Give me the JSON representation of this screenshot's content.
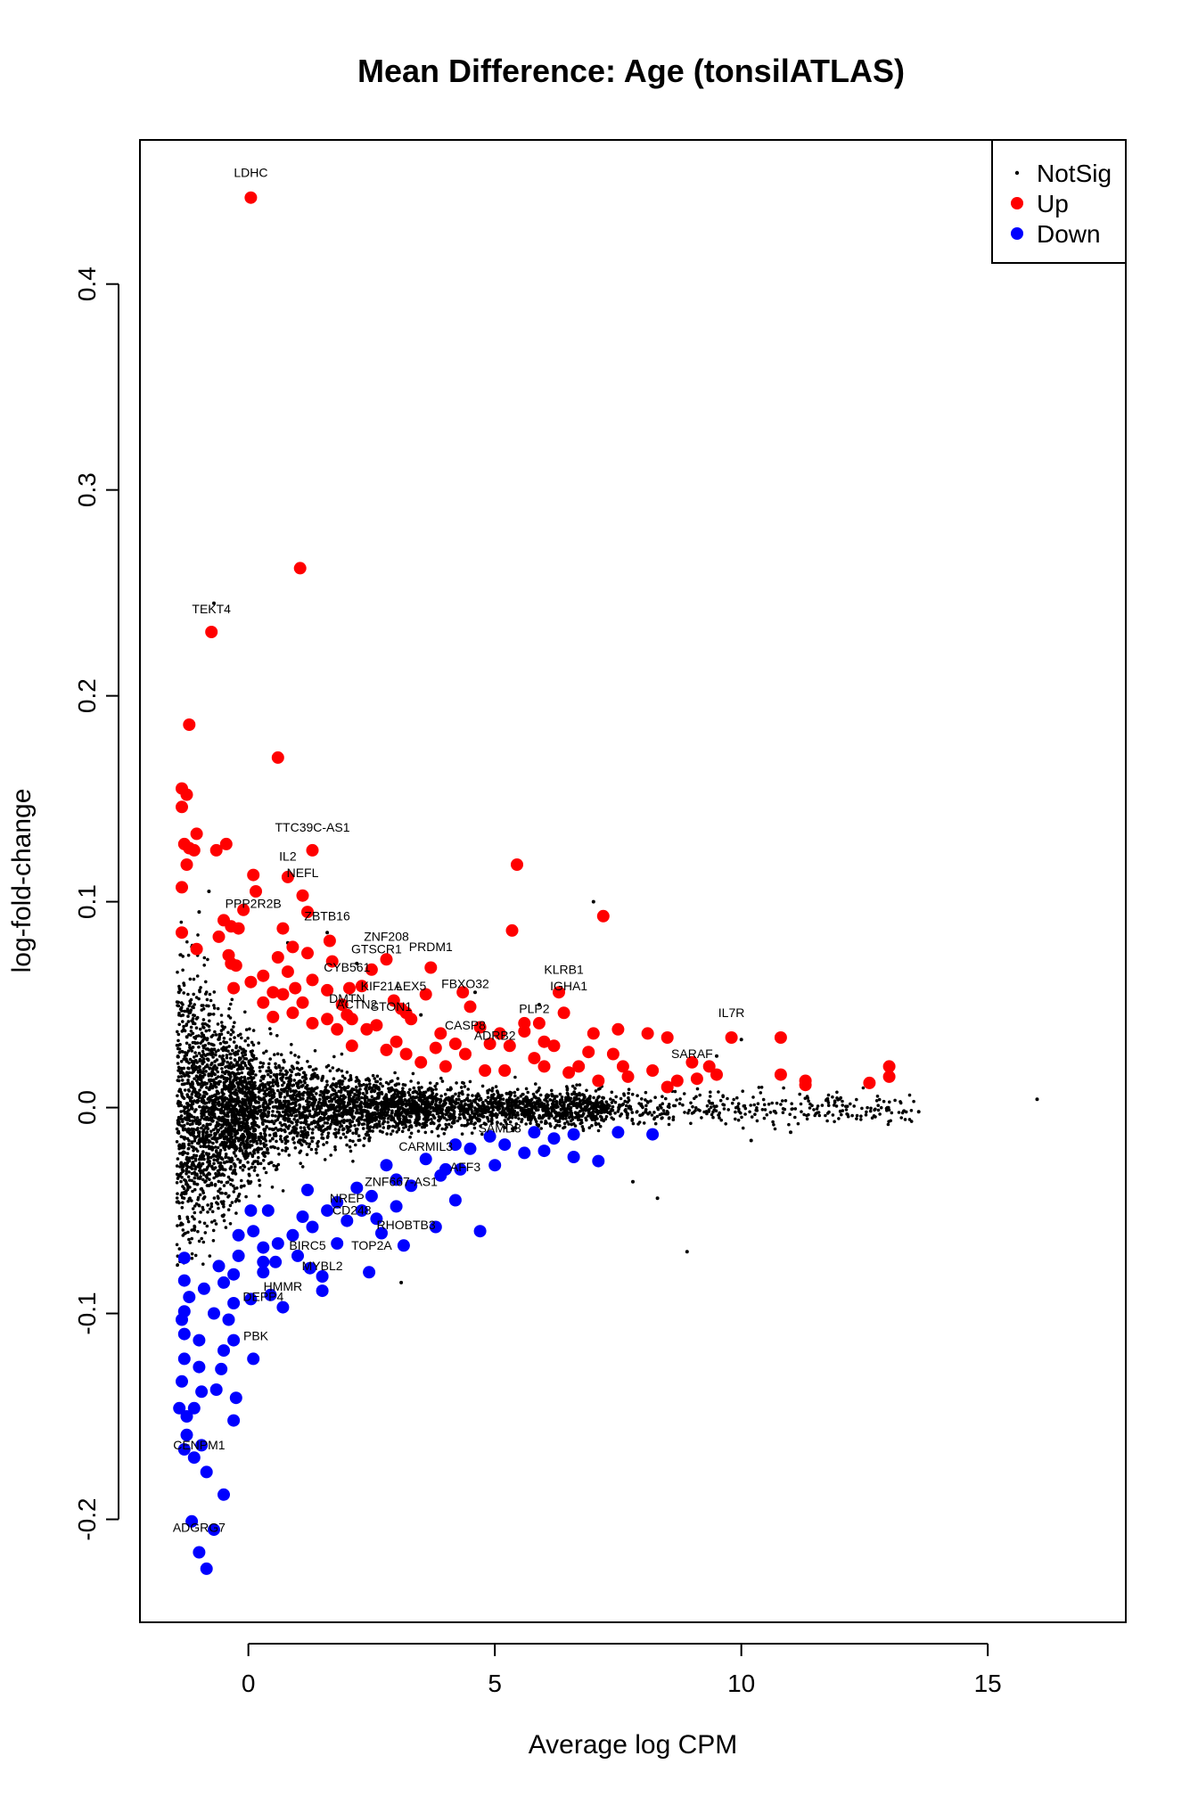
{
  "chart_data": {
    "type": "scatter",
    "title": "Mean Difference: Age (tonsilATLAS)",
    "xlabel": "Average log CPM",
    "ylabel": "log-fold-change",
    "xlim": [
      -2.2,
      17.8
    ],
    "ylim": [
      -0.25,
      0.47
    ],
    "x_ticks": [
      0,
      5,
      10,
      15
    ],
    "y_ticks": [
      -0.2,
      -0.1,
      0.0,
      0.1,
      0.2,
      0.3,
      0.4
    ],
    "x_tick_labels": [
      "0",
      "5",
      "10",
      "15"
    ],
    "y_tick_labels": [
      "-0.2",
      "-0.1",
      "0.0",
      "0.1",
      "0.2",
      "0.3",
      "0.4"
    ],
    "grid": false,
    "legend": {
      "position": "top-right",
      "entries": [
        {
          "label": "NotSig",
          "color": "#000000",
          "marker": "small-dot"
        },
        {
          "label": "Up",
          "color": "#ff0000",
          "marker": "circle"
        },
        {
          "label": "Down",
          "color": "#0000ff",
          "marker": "circle"
        }
      ]
    },
    "colors": {
      "NotSig": "#000000",
      "Up": "#ff0000",
      "Down": "#0000ff"
    },
    "series": [
      {
        "name": "NotSig",
        "points": [
          [
            -0.7,
            0.245
          ],
          [
            7.0,
            0.1
          ],
          [
            4.6,
            0.056
          ],
          [
            5.9,
            0.05
          ],
          [
            3.5,
            0.045
          ],
          [
            10.0,
            0.033
          ],
          [
            9.5,
            0.025
          ],
          [
            16.0,
            0.004
          ],
          [
            13.6,
            -0.002
          ],
          [
            10.2,
            -0.016
          ],
          [
            11.0,
            -0.012
          ],
          [
            7.8,
            -0.036
          ],
          [
            8.3,
            -0.044
          ],
          [
            8.9,
            -0.07
          ],
          [
            3.1,
            -0.085
          ],
          [
            0.8,
            0.08
          ],
          [
            1.6,
            0.085
          ],
          [
            2.2,
            0.07
          ],
          [
            -1.0,
            0.095
          ],
          [
            -0.8,
            0.105
          ]
        ]
      },
      {
        "name": "Up",
        "points": [
          [
            0.05,
            0.442
          ],
          [
            1.05,
            0.262
          ],
          [
            -0.75,
            0.231
          ],
          [
            -1.2,
            0.186
          ],
          [
            0.6,
            0.17
          ],
          [
            -1.35,
            0.155
          ],
          [
            -1.25,
            0.152
          ],
          [
            -1.35,
            0.146
          ],
          [
            -1.05,
            0.133
          ],
          [
            -0.45,
            0.128
          ],
          [
            -1.3,
            0.128
          ],
          [
            -1.2,
            0.126
          ],
          [
            -1.1,
            0.125
          ],
          [
            -0.65,
            0.125
          ],
          [
            1.3,
            0.125
          ],
          [
            -1.25,
            0.118
          ],
          [
            5.45,
            0.118
          ],
          [
            0.1,
            0.113
          ],
          [
            0.8,
            0.112
          ],
          [
            -1.35,
            0.107
          ],
          [
            0.15,
            0.105
          ],
          [
            1.1,
            0.103
          ],
          [
            -0.5,
            0.091
          ],
          [
            -0.35,
            0.088
          ],
          [
            1.2,
            0.095
          ],
          [
            -0.1,
            0.096
          ],
          [
            7.2,
            0.093
          ],
          [
            -0.2,
            0.087
          ],
          [
            0.7,
            0.087
          ],
          [
            5.35,
            0.086
          ],
          [
            -0.6,
            0.083
          ],
          [
            -1.35,
            0.085
          ],
          [
            1.65,
            0.081
          ],
          [
            0.9,
            0.078
          ],
          [
            -1.05,
            0.077
          ],
          [
            -0.4,
            0.074
          ],
          [
            1.2,
            0.075
          ],
          [
            0.6,
            0.073
          ],
          [
            -0.35,
            0.07
          ],
          [
            2.8,
            0.072
          ],
          [
            1.7,
            0.071
          ],
          [
            -0.25,
            0.069
          ],
          [
            3.7,
            0.068
          ],
          [
            2.5,
            0.067
          ],
          [
            0.3,
            0.064
          ],
          [
            0.8,
            0.066
          ],
          [
            1.3,
            0.062
          ],
          [
            0.05,
            0.061
          ],
          [
            2.3,
            0.059
          ],
          [
            2.05,
            0.058
          ],
          [
            -0.3,
            0.058
          ],
          [
            0.95,
            0.058
          ],
          [
            0.5,
            0.056
          ],
          [
            1.6,
            0.057
          ],
          [
            3.6,
            0.055
          ],
          [
            4.35,
            0.056
          ],
          [
            6.3,
            0.056
          ],
          [
            0.7,
            0.055
          ],
          [
            1.9,
            0.05
          ],
          [
            2.95,
            0.052
          ],
          [
            0.3,
            0.051
          ],
          [
            1.1,
            0.051
          ],
          [
            3.1,
            0.048
          ],
          [
            4.5,
            0.049
          ],
          [
            6.4,
            0.046
          ],
          [
            1.6,
            0.043
          ],
          [
            2.1,
            0.043
          ],
          [
            3.3,
            0.043
          ],
          [
            5.6,
            0.041
          ],
          [
            5.9,
            0.041
          ],
          [
            1.3,
            0.041
          ],
          [
            2.6,
            0.04
          ],
          [
            3.2,
            0.046
          ],
          [
            2.0,
            0.045
          ],
          [
            0.9,
            0.046
          ],
          [
            0.5,
            0.044
          ],
          [
            1.8,
            0.038
          ],
          [
            2.4,
            0.038
          ],
          [
            3.9,
            0.036
          ],
          [
            4.7,
            0.039
          ],
          [
            5.1,
            0.036
          ],
          [
            5.6,
            0.037
          ],
          [
            7.0,
            0.036
          ],
          [
            7.5,
            0.038
          ],
          [
            8.1,
            0.036
          ],
          [
            8.5,
            0.034
          ],
          [
            9.8,
            0.034
          ],
          [
            10.8,
            0.034
          ],
          [
            4.2,
            0.031
          ],
          [
            4.9,
            0.031
          ],
          [
            5.3,
            0.03
          ],
          [
            6.2,
            0.03
          ],
          [
            2.1,
            0.03
          ],
          [
            3.0,
            0.032
          ],
          [
            3.8,
            0.029
          ],
          [
            6.9,
            0.027
          ],
          [
            7.4,
            0.026
          ],
          [
            9.0,
            0.022
          ],
          [
            9.35,
            0.02
          ],
          [
            4.4,
            0.026
          ],
          [
            5.8,
            0.024
          ],
          [
            6.7,
            0.02
          ],
          [
            7.6,
            0.02
          ],
          [
            8.2,
            0.018
          ],
          [
            8.7,
            0.013
          ],
          [
            9.1,
            0.014
          ],
          [
            9.5,
            0.016
          ],
          [
            10.8,
            0.016
          ],
          [
            11.3,
            0.013
          ],
          [
            11.3,
            0.011
          ],
          [
            12.6,
            0.012
          ],
          [
            13.0,
            0.015
          ],
          [
            13.0,
            0.02
          ],
          [
            7.7,
            0.015
          ],
          [
            8.5,
            0.01
          ],
          [
            3.5,
            0.022
          ],
          [
            4.0,
            0.02
          ],
          [
            4.8,
            0.018
          ],
          [
            5.2,
            0.018
          ],
          [
            6.0,
            0.02
          ],
          [
            6.5,
            0.017
          ],
          [
            7.1,
            0.013
          ],
          [
            3.2,
            0.026
          ],
          [
            2.8,
            0.028
          ],
          [
            6.0,
            0.032
          ]
        ]
      },
      {
        "name": "Down",
        "points": [
          [
            -0.85,
            -0.224
          ],
          [
            -1.0,
            -0.216
          ],
          [
            -1.15,
            -0.201
          ],
          [
            -0.7,
            -0.205
          ],
          [
            -0.5,
            -0.188
          ],
          [
            -0.85,
            -0.177
          ],
          [
            -1.3,
            -0.166
          ],
          [
            -1.1,
            -0.17
          ],
          [
            -0.95,
            -0.164
          ],
          [
            -1.25,
            -0.159
          ],
          [
            -1.4,
            -0.146
          ],
          [
            -1.25,
            -0.15
          ],
          [
            -1.1,
            -0.146
          ],
          [
            -0.95,
            -0.138
          ],
          [
            -0.65,
            -0.137
          ],
          [
            -0.3,
            -0.152
          ],
          [
            -0.25,
            -0.141
          ],
          [
            -1.35,
            -0.133
          ],
          [
            -1.0,
            -0.126
          ],
          [
            -0.55,
            -0.127
          ],
          [
            -0.5,
            -0.118
          ],
          [
            0.1,
            -0.122
          ],
          [
            -1.3,
            -0.122
          ],
          [
            -1.0,
            -0.113
          ],
          [
            -0.3,
            -0.113
          ],
          [
            -1.3,
            -0.11
          ],
          [
            -1.35,
            -0.103
          ],
          [
            -0.7,
            -0.1
          ],
          [
            -0.4,
            -0.103
          ],
          [
            -0.3,
            -0.095
          ],
          [
            0.05,
            -0.093
          ],
          [
            0.7,
            -0.097
          ],
          [
            0.45,
            -0.091
          ],
          [
            -1.3,
            -0.099
          ],
          [
            -1.2,
            -0.092
          ],
          [
            -0.9,
            -0.088
          ],
          [
            -0.5,
            -0.085
          ],
          [
            -0.3,
            -0.081
          ],
          [
            0.3,
            -0.08
          ],
          [
            0.55,
            -0.075
          ],
          [
            0.3,
            -0.075
          ],
          [
            1.5,
            -0.089
          ],
          [
            1.5,
            -0.082
          ],
          [
            1.0,
            -0.072
          ],
          [
            1.25,
            -0.078
          ],
          [
            2.45,
            -0.08
          ],
          [
            -0.6,
            -0.077
          ],
          [
            -0.2,
            -0.072
          ],
          [
            -1.3,
            -0.084
          ],
          [
            -1.3,
            -0.073
          ],
          [
            0.3,
            -0.068
          ],
          [
            0.6,
            -0.066
          ],
          [
            1.8,
            -0.066
          ],
          [
            3.15,
            -0.067
          ],
          [
            4.7,
            -0.06
          ],
          [
            3.8,
            -0.058
          ],
          [
            2.7,
            -0.061
          ],
          [
            -0.2,
            -0.062
          ],
          [
            0.1,
            -0.06
          ],
          [
            0.9,
            -0.062
          ],
          [
            1.3,
            -0.058
          ],
          [
            2.0,
            -0.055
          ],
          [
            2.6,
            -0.054
          ],
          [
            1.6,
            -0.05
          ],
          [
            2.3,
            -0.05
          ],
          [
            3.0,
            -0.048
          ],
          [
            4.2,
            -0.045
          ],
          [
            0.05,
            -0.05
          ],
          [
            0.4,
            -0.05
          ],
          [
            1.1,
            -0.053
          ],
          [
            1.8,
            -0.046
          ],
          [
            2.5,
            -0.043
          ],
          [
            3.3,
            -0.038
          ],
          [
            3.9,
            -0.033
          ],
          [
            4.3,
            -0.03
          ],
          [
            5.0,
            -0.028
          ],
          [
            4.0,
            -0.03
          ],
          [
            3.0,
            -0.035
          ],
          [
            2.2,
            -0.039
          ],
          [
            1.2,
            -0.04
          ],
          [
            5.6,
            -0.022
          ],
          [
            6.0,
            -0.021
          ],
          [
            6.6,
            -0.024
          ],
          [
            7.1,
            -0.026
          ],
          [
            7.5,
            -0.012
          ],
          [
            8.2,
            -0.013
          ],
          [
            4.5,
            -0.02
          ],
          [
            5.2,
            -0.018
          ],
          [
            3.6,
            -0.025
          ],
          [
            2.8,
            -0.028
          ],
          [
            6.2,
            -0.015
          ],
          [
            6.6,
            -0.013
          ],
          [
            5.8,
            -0.012
          ],
          [
            4.9,
            -0.014
          ],
          [
            4.2,
            -0.018
          ]
        ]
      }
    ],
    "annotations": [
      {
        "text": "LDHC",
        "x": 0.05,
        "y": 0.452
      },
      {
        "text": "TEKT4",
        "x": -0.75,
        "y": 0.24
      },
      {
        "text": "TTC39C-AS1",
        "x": 1.3,
        "y": 0.134
      },
      {
        "text": "IL2",
        "x": 0.8,
        "y": 0.12
      },
      {
        "text": "NEFL",
        "x": 1.1,
        "y": 0.112
      },
      {
        "text": "PPP2R2B",
        "x": 0.1,
        "y": 0.097
      },
      {
        "text": "ZBTB16",
        "x": 1.6,
        "y": 0.091
      },
      {
        "text": "ZNF208",
        "x": 2.8,
        "y": 0.081
      },
      {
        "text": "GTSCR1",
        "x": 2.6,
        "y": 0.075
      },
      {
        "text": "PRDM1",
        "x": 3.7,
        "y": 0.076
      },
      {
        "text": "CYB561",
        "x": 2.0,
        "y": 0.066
      },
      {
        "text": "KLRB1",
        "x": 6.4,
        "y": 0.065
      },
      {
        "text": "KIF21A",
        "x": 2.7,
        "y": 0.057
      },
      {
        "text": "LEX5",
        "x": 3.3,
        "y": 0.057
      },
      {
        "text": "FBXO32",
        "x": 4.4,
        "y": 0.058
      },
      {
        "text": "IGHA1",
        "x": 6.5,
        "y": 0.057
      },
      {
        "text": "DMTN",
        "x": 2.0,
        "y": 0.051
      },
      {
        "text": "ACTN2",
        "x": 2.2,
        "y": 0.048
      },
      {
        "text": "STON1",
        "x": 2.9,
        "y": 0.047
      },
      {
        "text": "PLP2",
        "x": 5.8,
        "y": 0.046
      },
      {
        "text": "IL7R",
        "x": 9.8,
        "y": 0.044
      },
      {
        "text": "CASP8",
        "x": 4.4,
        "y": 0.038
      },
      {
        "text": "ADRB2",
        "x": 5.0,
        "y": 0.033
      },
      {
        "text": "SARAF",
        "x": 9.0,
        "y": 0.024
      },
      {
        "text": "SAMD3",
        "x": 5.1,
        "y": -0.012
      },
      {
        "text": "CARMIL3",
        "x": 3.6,
        "y": -0.021
      },
      {
        "text": "AFF3",
        "x": 4.4,
        "y": -0.031
      },
      {
        "text": "ZNF667-AS1",
        "x": 3.1,
        "y": -0.038
      },
      {
        "text": "NREP",
        "x": 2.0,
        "y": -0.046
      },
      {
        "text": "CD248",
        "x": 2.1,
        "y": -0.052
      },
      {
        "text": "RHOBTB3",
        "x": 3.2,
        "y": -0.059
      },
      {
        "text": "BIRC5",
        "x": 1.2,
        "y": -0.069
      },
      {
        "text": "TOP2A",
        "x": 2.5,
        "y": -0.069
      },
      {
        "text": "MYBL2",
        "x": 1.5,
        "y": -0.079
      },
      {
        "text": "HMMR",
        "x": 0.7,
        "y": -0.089
      },
      {
        "text": "DEPP4",
        "x": 0.3,
        "y": -0.094
      },
      {
        "text": "PBK",
        "x": 0.15,
        "y": -0.113
      },
      {
        "text": "CENPM1",
        "x": -1.0,
        "y": -0.166
      },
      {
        "text": "ADGRG7",
        "x": -1.0,
        "y": -0.206
      }
    ]
  }
}
